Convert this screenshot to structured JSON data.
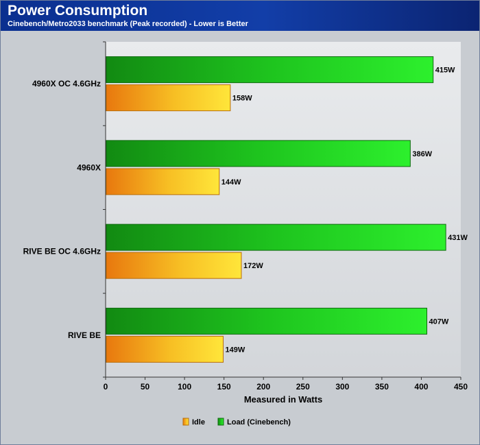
{
  "chart_data": {
    "type": "bar",
    "orientation": "horizontal",
    "title": "Power Consumption",
    "subtitle": "Cinebench/Metro2033 benchmark (Peak recorded) - Lower is Better",
    "xlabel": "Measured in Watts",
    "ylabel": "",
    "xlim": [
      0,
      450
    ],
    "xticks": [
      "0",
      "50",
      "100",
      "150",
      "200",
      "250",
      "300",
      "350",
      "400",
      "450"
    ],
    "categories": [
      "4960X OC 4.6GHz",
      "4960X",
      "RIVE BE OC 4.6GHz",
      "RIVE BE"
    ],
    "series": [
      {
        "name": "Load (Cinebench)",
        "values": [
          415,
          386,
          431,
          407
        ],
        "labels": [
          "415W",
          "386W",
          "431W",
          "407W"
        ],
        "color": "#17c817"
      },
      {
        "name": "Idle",
        "values": [
          158,
          144,
          172,
          149
        ],
        "labels": [
          "158W",
          "144W",
          "172W",
          "149W"
        ],
        "color": "#f4b21a"
      }
    ],
    "legend": {
      "position": "bottom",
      "order": [
        "Idle",
        "Load (Cinebench)"
      ]
    },
    "grid": false
  }
}
